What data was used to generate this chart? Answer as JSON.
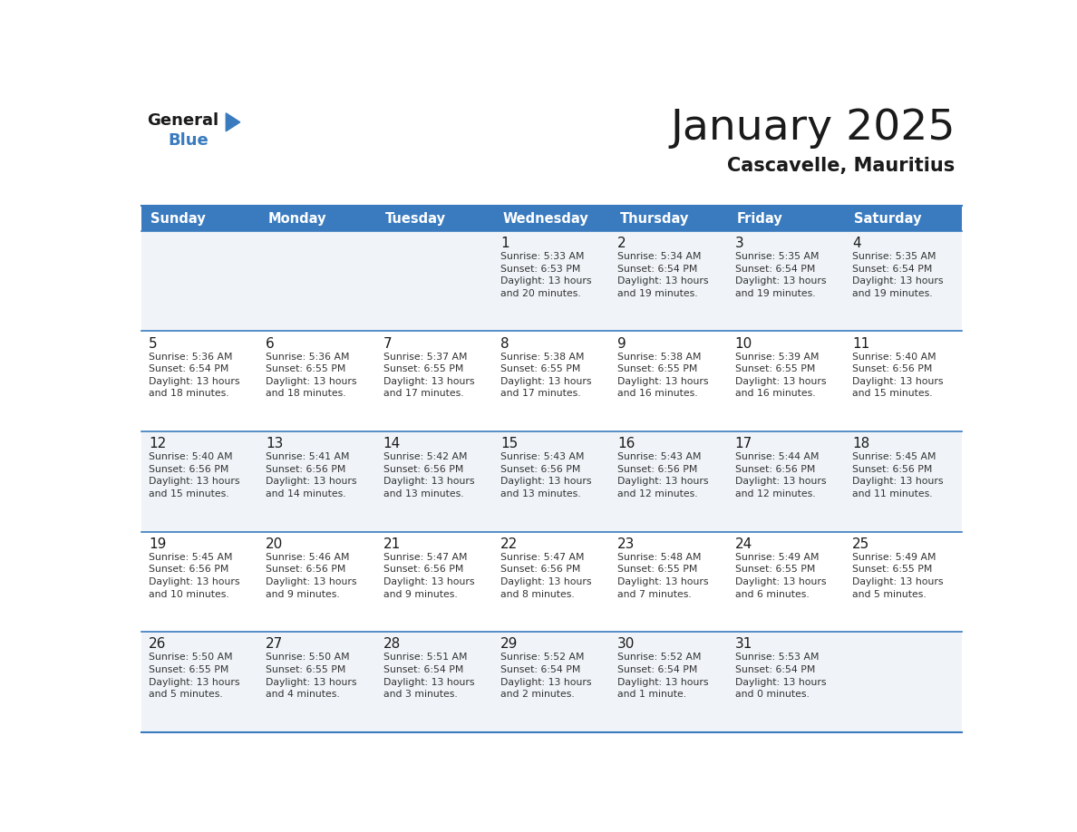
{
  "title": "January 2025",
  "subtitle": "Cascavelle, Mauritius",
  "header_bg": "#3a7bbf",
  "header_text": "#ffffff",
  "cell_bg_odd": "#f0f4f8",
  "cell_bg_even": "#ffffff",
  "line_color": "#3a7bbf",
  "text_color": "#333333",
  "day_headers": [
    "Sunday",
    "Monday",
    "Tuesday",
    "Wednesday",
    "Thursday",
    "Friday",
    "Saturday"
  ],
  "weeks": [
    [
      {
        "day": "",
        "info": ""
      },
      {
        "day": "",
        "info": ""
      },
      {
        "day": "",
        "info": ""
      },
      {
        "day": "1",
        "info": "Sunrise: 5:33 AM\nSunset: 6:53 PM\nDaylight: 13 hours\nand 20 minutes."
      },
      {
        "day": "2",
        "info": "Sunrise: 5:34 AM\nSunset: 6:54 PM\nDaylight: 13 hours\nand 19 minutes."
      },
      {
        "day": "3",
        "info": "Sunrise: 5:35 AM\nSunset: 6:54 PM\nDaylight: 13 hours\nand 19 minutes."
      },
      {
        "day": "4",
        "info": "Sunrise: 5:35 AM\nSunset: 6:54 PM\nDaylight: 13 hours\nand 19 minutes."
      }
    ],
    [
      {
        "day": "5",
        "info": "Sunrise: 5:36 AM\nSunset: 6:54 PM\nDaylight: 13 hours\nand 18 minutes."
      },
      {
        "day": "6",
        "info": "Sunrise: 5:36 AM\nSunset: 6:55 PM\nDaylight: 13 hours\nand 18 minutes."
      },
      {
        "day": "7",
        "info": "Sunrise: 5:37 AM\nSunset: 6:55 PM\nDaylight: 13 hours\nand 17 minutes."
      },
      {
        "day": "8",
        "info": "Sunrise: 5:38 AM\nSunset: 6:55 PM\nDaylight: 13 hours\nand 17 minutes."
      },
      {
        "day": "9",
        "info": "Sunrise: 5:38 AM\nSunset: 6:55 PM\nDaylight: 13 hours\nand 16 minutes."
      },
      {
        "day": "10",
        "info": "Sunrise: 5:39 AM\nSunset: 6:55 PM\nDaylight: 13 hours\nand 16 minutes."
      },
      {
        "day": "11",
        "info": "Sunrise: 5:40 AM\nSunset: 6:56 PM\nDaylight: 13 hours\nand 15 minutes."
      }
    ],
    [
      {
        "day": "12",
        "info": "Sunrise: 5:40 AM\nSunset: 6:56 PM\nDaylight: 13 hours\nand 15 minutes."
      },
      {
        "day": "13",
        "info": "Sunrise: 5:41 AM\nSunset: 6:56 PM\nDaylight: 13 hours\nand 14 minutes."
      },
      {
        "day": "14",
        "info": "Sunrise: 5:42 AM\nSunset: 6:56 PM\nDaylight: 13 hours\nand 13 minutes."
      },
      {
        "day": "15",
        "info": "Sunrise: 5:43 AM\nSunset: 6:56 PM\nDaylight: 13 hours\nand 13 minutes."
      },
      {
        "day": "16",
        "info": "Sunrise: 5:43 AM\nSunset: 6:56 PM\nDaylight: 13 hours\nand 12 minutes."
      },
      {
        "day": "17",
        "info": "Sunrise: 5:44 AM\nSunset: 6:56 PM\nDaylight: 13 hours\nand 12 minutes."
      },
      {
        "day": "18",
        "info": "Sunrise: 5:45 AM\nSunset: 6:56 PM\nDaylight: 13 hours\nand 11 minutes."
      }
    ],
    [
      {
        "day": "19",
        "info": "Sunrise: 5:45 AM\nSunset: 6:56 PM\nDaylight: 13 hours\nand 10 minutes."
      },
      {
        "day": "20",
        "info": "Sunrise: 5:46 AM\nSunset: 6:56 PM\nDaylight: 13 hours\nand 9 minutes."
      },
      {
        "day": "21",
        "info": "Sunrise: 5:47 AM\nSunset: 6:56 PM\nDaylight: 13 hours\nand 9 minutes."
      },
      {
        "day": "22",
        "info": "Sunrise: 5:47 AM\nSunset: 6:56 PM\nDaylight: 13 hours\nand 8 minutes."
      },
      {
        "day": "23",
        "info": "Sunrise: 5:48 AM\nSunset: 6:55 PM\nDaylight: 13 hours\nand 7 minutes."
      },
      {
        "day": "24",
        "info": "Sunrise: 5:49 AM\nSunset: 6:55 PM\nDaylight: 13 hours\nand 6 minutes."
      },
      {
        "day": "25",
        "info": "Sunrise: 5:49 AM\nSunset: 6:55 PM\nDaylight: 13 hours\nand 5 minutes."
      }
    ],
    [
      {
        "day": "26",
        "info": "Sunrise: 5:50 AM\nSunset: 6:55 PM\nDaylight: 13 hours\nand 5 minutes."
      },
      {
        "day": "27",
        "info": "Sunrise: 5:50 AM\nSunset: 6:55 PM\nDaylight: 13 hours\nand 4 minutes."
      },
      {
        "day": "28",
        "info": "Sunrise: 5:51 AM\nSunset: 6:54 PM\nDaylight: 13 hours\nand 3 minutes."
      },
      {
        "day": "29",
        "info": "Sunrise: 5:52 AM\nSunset: 6:54 PM\nDaylight: 13 hours\nand 2 minutes."
      },
      {
        "day": "30",
        "info": "Sunrise: 5:52 AM\nSunset: 6:54 PM\nDaylight: 13 hours\nand 1 minute."
      },
      {
        "day": "31",
        "info": "Sunrise: 5:53 AM\nSunset: 6:54 PM\nDaylight: 13 hours\nand 0 minutes."
      },
      {
        "day": "",
        "info": ""
      }
    ]
  ],
  "logo_general_color": "#1a1a1a",
  "logo_blue_color": "#3a7bbf",
  "logo_triangle_color": "#3a7bbf"
}
